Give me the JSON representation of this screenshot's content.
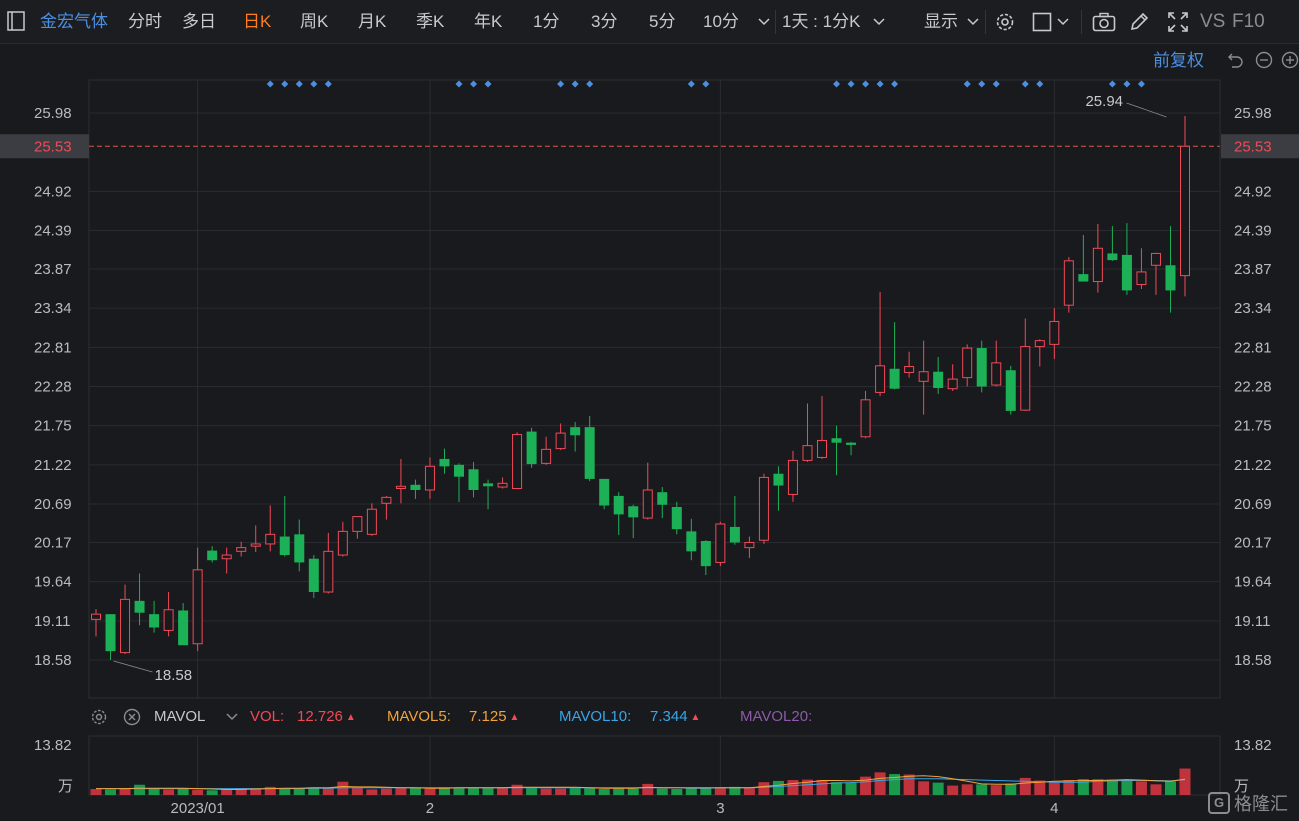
{
  "toolbar": {
    "stock_name": "金宏气体",
    "periods": [
      "分时",
      "多日",
      "日K",
      "周K",
      "月K",
      "季K",
      "年K",
      "1分",
      "3分",
      "5分",
      "10分"
    ],
    "active_period": "日K",
    "period_combo": "1天 : 1分K",
    "display_label": "显示",
    "vs_label": "VS",
    "f10_label": "F10"
  },
  "price_panel": {
    "adjust_label": "前复权",
    "current_price": "25.53",
    "high_label": "25.94",
    "low_label": "18.58"
  },
  "indicator_bar": {
    "name": "MAVOL",
    "vol_label": "VOL:",
    "vol_value": "12.726",
    "mavol5_label": "MAVOL5:",
    "mavol5_value": "7.125",
    "mavol10_label": "MAVOL10:",
    "mavol10_value": "7.344",
    "mavol20_label": "MAVOL20:"
  },
  "colors": {
    "up": "#f24957",
    "down": "#1db157",
    "mavol5": "#f2a33a",
    "mavol10": "#38a6e8",
    "mavol20": "#8d5aa7",
    "accent_orange": "#ff7c1f",
    "accent_blue": "#4c8fe0"
  },
  "watermark": {
    "text": "格隆汇"
  },
  "chart_data": [
    {
      "type": "candlestick",
      "y_ticks": [
        "25.98",
        "24.92",
        "24.39",
        "23.87",
        "23.34",
        "22.81",
        "22.28",
        "21.75",
        "21.22",
        "20.69",
        "20.17",
        "19.64",
        "19.11",
        "18.58"
      ],
      "ylim": [
        18.3,
        26.3
      ],
      "x_ticks": [
        {
          "label": "2023/01",
          "index": 7
        },
        {
          "label": "2",
          "index": 23
        },
        {
          "label": "3",
          "index": 43
        },
        {
          "label": "4",
          "index": 66
        }
      ],
      "reference_line": 25.53,
      "annotations": [
        {
          "text": "25.94",
          "index": 74,
          "value": 25.94
        },
        {
          "text": "18.58",
          "index": 1,
          "value": 18.58
        }
      ],
      "candles": [
        {
          "o": 19.13,
          "h": 19.27,
          "l": 18.9,
          "c": 19.2
        },
        {
          "o": 19.2,
          "h": 19.2,
          "l": 18.58,
          "c": 18.7
        },
        {
          "o": 18.68,
          "h": 19.6,
          "l": 18.66,
          "c": 19.4
        },
        {
          "o": 19.38,
          "h": 19.75,
          "l": 19.05,
          "c": 19.22
        },
        {
          "o": 19.2,
          "h": 19.38,
          "l": 18.95,
          "c": 19.02
        },
        {
          "o": 18.98,
          "h": 19.5,
          "l": 18.9,
          "c": 19.26
        },
        {
          "o": 19.25,
          "h": 19.35,
          "l": 18.8,
          "c": 18.78
        },
        {
          "o": 18.8,
          "h": 20.1,
          "l": 18.7,
          "c": 19.8
        },
        {
          "o": 20.06,
          "h": 20.12,
          "l": 19.9,
          "c": 19.93
        },
        {
          "o": 19.95,
          "h": 20.1,
          "l": 19.75,
          "c": 20.0
        },
        {
          "o": 20.05,
          "h": 20.18,
          "l": 19.98,
          "c": 20.1
        },
        {
          "o": 20.12,
          "h": 20.4,
          "l": 20.04,
          "c": 20.15
        },
        {
          "o": 20.15,
          "h": 20.67,
          "l": 20.05,
          "c": 20.28
        },
        {
          "o": 20.25,
          "h": 20.8,
          "l": 19.98,
          "c": 20.0
        },
        {
          "o": 20.28,
          "h": 20.48,
          "l": 19.78,
          "c": 19.9
        },
        {
          "o": 19.95,
          "h": 20.0,
          "l": 19.42,
          "c": 19.5
        },
        {
          "o": 19.5,
          "h": 20.3,
          "l": 19.48,
          "c": 20.05
        },
        {
          "o": 20.0,
          "h": 20.45,
          "l": 19.98,
          "c": 20.32
        },
        {
          "o": 20.32,
          "h": 20.52,
          "l": 20.22,
          "c": 20.52
        },
        {
          "o": 20.28,
          "h": 20.7,
          "l": 20.26,
          "c": 20.62
        },
        {
          "o": 20.7,
          "h": 20.8,
          "l": 20.48,
          "c": 20.78
        },
        {
          "o": 20.9,
          "h": 21.3,
          "l": 20.7,
          "c": 20.93
        },
        {
          "o": 20.95,
          "h": 21.02,
          "l": 20.76,
          "c": 20.88
        },
        {
          "o": 20.88,
          "h": 21.32,
          "l": 20.76,
          "c": 21.2
        },
        {
          "o": 21.3,
          "h": 21.44,
          "l": 21.1,
          "c": 21.2
        },
        {
          "o": 21.22,
          "h": 21.24,
          "l": 20.72,
          "c": 21.06
        },
        {
          "o": 21.16,
          "h": 21.26,
          "l": 20.78,
          "c": 20.88
        },
        {
          "o": 20.97,
          "h": 21.02,
          "l": 20.62,
          "c": 20.93
        },
        {
          "o": 20.92,
          "h": 21.05,
          "l": 20.9,
          "c": 20.97
        },
        {
          "o": 20.9,
          "h": 21.66,
          "l": 20.9,
          "c": 21.63
        },
        {
          "o": 21.67,
          "h": 21.72,
          "l": 21.18,
          "c": 21.23
        },
        {
          "o": 21.24,
          "h": 21.6,
          "l": 21.22,
          "c": 21.43
        },
        {
          "o": 21.44,
          "h": 21.78,
          "l": 21.42,
          "c": 21.65
        },
        {
          "o": 21.73,
          "h": 21.8,
          "l": 21.4,
          "c": 21.62
        },
        {
          "o": 21.73,
          "h": 21.88,
          "l": 21.0,
          "c": 21.03
        },
        {
          "o": 21.03,
          "h": 21.03,
          "l": 20.62,
          "c": 20.67
        },
        {
          "o": 20.8,
          "h": 20.85,
          "l": 20.27,
          "c": 20.55
        },
        {
          "o": 20.66,
          "h": 20.68,
          "l": 20.23,
          "c": 20.51
        },
        {
          "o": 20.5,
          "h": 21.25,
          "l": 20.48,
          "c": 20.88
        },
        {
          "o": 20.85,
          "h": 20.92,
          "l": 20.5,
          "c": 20.68
        },
        {
          "o": 20.65,
          "h": 20.72,
          "l": 20.28,
          "c": 20.35
        },
        {
          "o": 20.32,
          "h": 20.49,
          "l": 19.93,
          "c": 20.05
        },
        {
          "o": 20.19,
          "h": 20.2,
          "l": 19.73,
          "c": 19.85
        },
        {
          "o": 19.9,
          "h": 20.45,
          "l": 19.85,
          "c": 20.42
        },
        {
          "o": 20.38,
          "h": 20.8,
          "l": 20.14,
          "c": 20.17
        },
        {
          "o": 20.1,
          "h": 20.25,
          "l": 19.96,
          "c": 20.17
        },
        {
          "o": 20.2,
          "h": 21.1,
          "l": 20.15,
          "c": 21.05
        },
        {
          "o": 21.1,
          "h": 21.2,
          "l": 20.6,
          "c": 20.94
        },
        {
          "o": 20.82,
          "h": 21.41,
          "l": 20.72,
          "c": 21.28
        },
        {
          "o": 21.28,
          "h": 22.05,
          "l": 21.26,
          "c": 21.48
        },
        {
          "o": 21.32,
          "h": 22.15,
          "l": 21.3,
          "c": 21.55
        },
        {
          "o": 21.58,
          "h": 21.75,
          "l": 21.08,
          "c": 21.52
        },
        {
          "o": 21.52,
          "h": 21.53,
          "l": 21.35,
          "c": 21.49
        },
        {
          "o": 21.6,
          "h": 22.22,
          "l": 21.58,
          "c": 22.1
        },
        {
          "o": 22.2,
          "h": 23.56,
          "l": 22.15,
          "c": 22.56
        },
        {
          "o": 22.52,
          "h": 23.15,
          "l": 22.24,
          "c": 22.25
        },
        {
          "o": 22.47,
          "h": 22.75,
          "l": 22.4,
          "c": 22.55
        },
        {
          "o": 22.35,
          "h": 22.9,
          "l": 21.9,
          "c": 22.48
        },
        {
          "o": 22.48,
          "h": 22.68,
          "l": 22.18,
          "c": 22.26
        },
        {
          "o": 22.25,
          "h": 22.58,
          "l": 22.22,
          "c": 22.38
        },
        {
          "o": 22.4,
          "h": 22.85,
          "l": 22.28,
          "c": 22.8
        },
        {
          "o": 22.8,
          "h": 22.9,
          "l": 22.2,
          "c": 22.28
        },
        {
          "o": 22.3,
          "h": 22.9,
          "l": 22.28,
          "c": 22.6
        },
        {
          "o": 22.5,
          "h": 22.56,
          "l": 21.9,
          "c": 21.95
        },
        {
          "o": 21.96,
          "h": 23.2,
          "l": 21.95,
          "c": 22.82
        },
        {
          "o": 22.82,
          "h": 22.92,
          "l": 22.55,
          "c": 22.9
        },
        {
          "o": 22.85,
          "h": 23.34,
          "l": 22.65,
          "c": 23.16
        },
        {
          "o": 23.38,
          "h": 24.03,
          "l": 23.28,
          "c": 23.98
        },
        {
          "o": 23.8,
          "h": 24.33,
          "l": 23.7,
          "c": 23.7
        },
        {
          "o": 23.7,
          "h": 24.48,
          "l": 23.55,
          "c": 24.15
        },
        {
          "o": 24.08,
          "h": 24.45,
          "l": 23.98,
          "c": 23.99
        },
        {
          "o": 24.06,
          "h": 24.49,
          "l": 23.52,
          "c": 23.58
        },
        {
          "o": 23.66,
          "h": 24.15,
          "l": 23.6,
          "c": 23.83
        },
        {
          "o": 23.92,
          "h": 24.09,
          "l": 23.52,
          "c": 24.08
        },
        {
          "o": 23.92,
          "h": 24.45,
          "l": 23.28,
          "c": 23.58
        },
        {
          "o": 23.78,
          "h": 25.94,
          "l": 23.5,
          "c": 25.53
        }
      ]
    },
    {
      "type": "bar",
      "title": "MAVOL",
      "y_ticks": [
        "13.82",
        "万"
      ],
      "ylim": [
        0,
        13.82
      ],
      "volumes": [
        1.4,
        1.3,
        1.5,
        2.4,
        1.5,
        1.3,
        1.5,
        1.2,
        1.1,
        1.3,
        1.6,
        1.5,
        1.9,
        1.6,
        1.5,
        1.8,
        1.7,
        3.1,
        1.6,
        1.3,
        1.5,
        1.6,
        1.7,
        1.5,
        1.8,
        1.6,
        1.7,
        1.6,
        1.8,
        2.4,
        1.6,
        1.5,
        1.5,
        1.6,
        1.6,
        1.4,
        1.5,
        1.5,
        2.6,
        1.5,
        1.4,
        1.6,
        1.6,
        1.8,
        1.9,
        1.7,
        3.0,
        3.3,
        3.5,
        3.6,
        3.5,
        3.0,
        2.8,
        4.3,
        5.3,
        4.9,
        4.8,
        3.2,
        2.9,
        2.2,
        2.5,
        2.5,
        2.3,
        2.7,
        4.0,
        3.4,
        3.0,
        3.5,
        3.7,
        3.7,
        3.6,
        3.6,
        3.2,
        2.5,
        3.2,
        6.2
      ],
      "mavol5": [
        1.5,
        1.5,
        1.5,
        1.6,
        1.6,
        1.6,
        1.6,
        1.5,
        1.4,
        1.3,
        1.3,
        1.4,
        1.5,
        1.6,
        1.6,
        1.7,
        1.7,
        2.0,
        1.9,
        1.9,
        1.8,
        1.7,
        1.7,
        1.6,
        1.6,
        1.7,
        1.7,
        1.7,
        1.7,
        1.8,
        1.8,
        1.8,
        1.8,
        1.8,
        1.7,
        1.6,
        1.6,
        1.6,
        1.8,
        1.7,
        1.7,
        1.7,
        1.7,
        1.7,
        1.7,
        1.7,
        2.0,
        2.3,
        2.7,
        3.0,
        3.4,
        3.4,
        3.3,
        3.5,
        3.9,
        4.1,
        4.4,
        4.5,
        4.3,
        3.8,
        3.2,
        2.6,
        2.5,
        2.5,
        2.8,
        3.0,
        3.2,
        3.3,
        3.4,
        3.4,
        3.5,
        3.6,
        3.5,
        3.3,
        3.2,
        3.7
      ],
      "mavol10": [
        1.5,
        1.5,
        1.5,
        1.5,
        1.5,
        1.5,
        1.5,
        1.5,
        1.5,
        1.5,
        1.5,
        1.5,
        1.5,
        1.5,
        1.5,
        1.6,
        1.6,
        1.7,
        1.7,
        1.7,
        1.7,
        1.7,
        1.7,
        1.7,
        1.7,
        1.7,
        1.7,
        1.7,
        1.7,
        1.7,
        1.7,
        1.7,
        1.7,
        1.7,
        1.7,
        1.7,
        1.7,
        1.7,
        1.7,
        1.7,
        1.7,
        1.6,
        1.6,
        1.7,
        1.7,
        1.7,
        1.8,
        2.0,
        2.2,
        2.4,
        2.6,
        2.8,
        2.9,
        3.1,
        3.4,
        3.6,
        3.8,
        3.8,
        3.8,
        3.7,
        3.6,
        3.5,
        3.4,
        3.3,
        3.2,
        3.1,
        3.0,
        3.0,
        3.0,
        3.2,
        3.3,
        3.4,
        3.4,
        3.4,
        3.3,
        3.6
      ]
    }
  ]
}
